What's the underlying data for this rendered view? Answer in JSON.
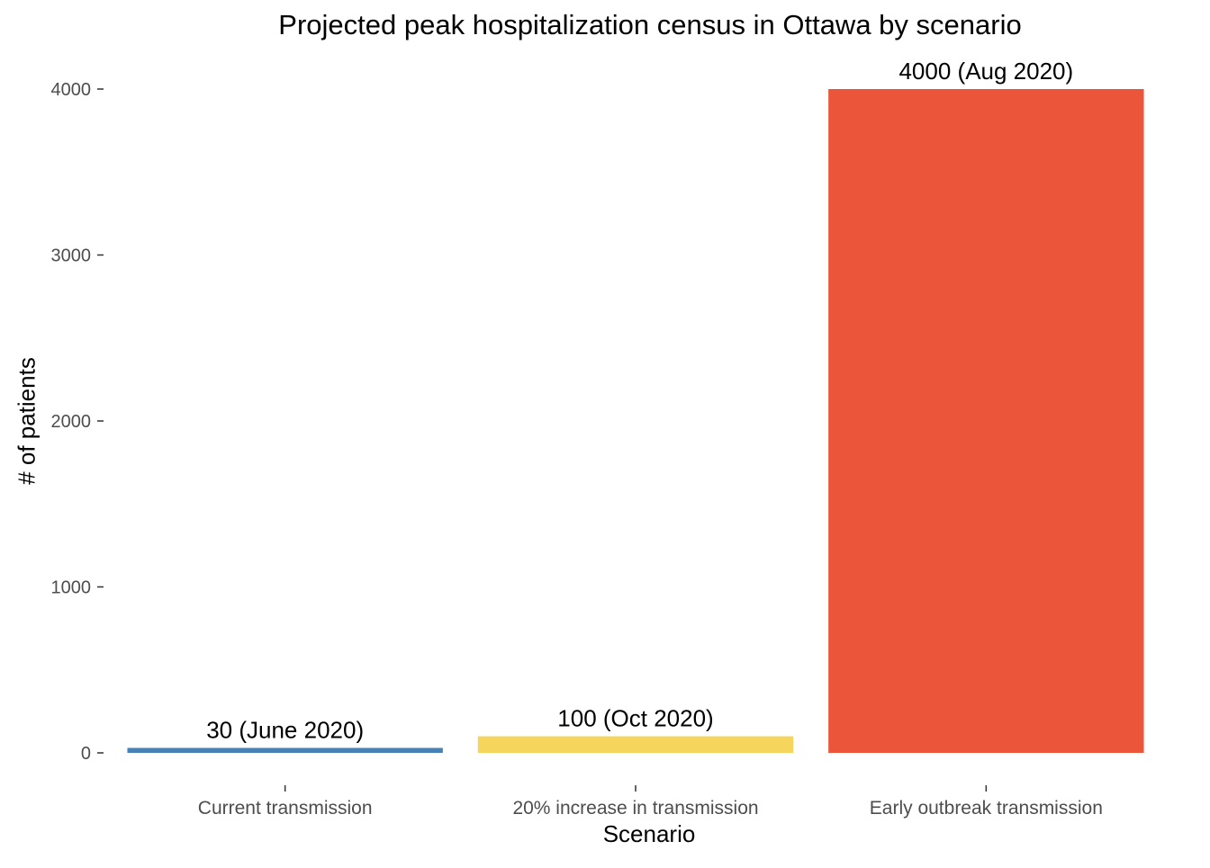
{
  "chart_data": {
    "type": "bar",
    "title": "Projected peak hospitalization census in Ottawa by scenario",
    "xlabel": "Scenario",
    "ylabel": "# of patients",
    "categories": [
      "Current transmission",
      "20% increase in transmission",
      "Early outbreak transmission"
    ],
    "values": [
      30,
      100,
      4000
    ],
    "data_labels": [
      "30 (June 2020)",
      "100 (Oct 2020)",
      "4000 (Aug 2020)"
    ],
    "colors": [
      "#4682B4",
      "#F6D55C",
      "#EB563B"
    ],
    "ylim": [
      -170,
      4120
    ],
    "yticks": [
      0,
      1000,
      2000,
      3000,
      4000
    ],
    "grid": false,
    "legend": "none"
  }
}
